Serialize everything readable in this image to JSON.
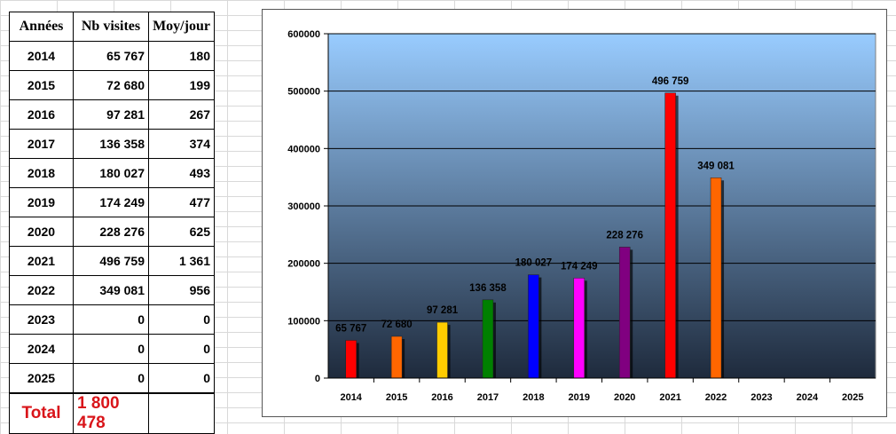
{
  "table": {
    "headers": [
      "Années",
      "Nb visites",
      "Moy/jour"
    ],
    "rows": [
      {
        "year": "2014",
        "visits": "65 767",
        "avg": "180"
      },
      {
        "year": "2015",
        "visits": "72 680",
        "avg": "199"
      },
      {
        "year": "2016",
        "visits": "97 281",
        "avg": "267"
      },
      {
        "year": "2017",
        "visits": "136 358",
        "avg": "374"
      },
      {
        "year": "2018",
        "visits": "180 027",
        "avg": "493"
      },
      {
        "year": "2019",
        "visits": "174 249",
        "avg": "477"
      },
      {
        "year": "2020",
        "visits": "228 276",
        "avg": "625"
      },
      {
        "year": "2021",
        "visits": "496 759",
        "avg": "1 361"
      },
      {
        "year": "2022",
        "visits": "349 081",
        "avg": "956"
      },
      {
        "year": "2023",
        "visits": "0",
        "avg": "0"
      },
      {
        "year": "2024",
        "visits": "0",
        "avg": "0"
      },
      {
        "year": "2025",
        "visits": "0",
        "avg": "0"
      }
    ],
    "total_label": "Total",
    "total_value": "1 800 478",
    "total_color": "#d9151a"
  },
  "chart_data": {
    "type": "bar",
    "categories": [
      "2014",
      "2015",
      "2016",
      "2017",
      "2018",
      "2019",
      "2020",
      "2021",
      "2022",
      "2023",
      "2024",
      "2025"
    ],
    "values": [
      65767,
      72680,
      97281,
      136358,
      180027,
      174249,
      228276,
      496759,
      349081,
      0,
      0,
      0
    ],
    "data_labels": [
      "65 767",
      "72 680",
      "97 281",
      "136 358",
      "180 027",
      "174 249",
      "228 276",
      "496 759",
      "349 081",
      "",
      "",
      ""
    ],
    "bar_colors": [
      "#ff0000",
      "#ff6600",
      "#ffcc00",
      "#008000",
      "#0000ff",
      "#ff00ff",
      "#800080",
      "#ff0000",
      "#ff6600",
      "#ff0000",
      "#ff6600",
      "#ffcc00"
    ],
    "ylim": [
      0,
      600000
    ],
    "yticks": [
      "0",
      "100000",
      "200000",
      "300000",
      "400000",
      "500000",
      "600000"
    ],
    "grid": true,
    "legend": "none",
    "background_gradient": [
      "#99ccff",
      "#1e2a3c"
    ]
  }
}
